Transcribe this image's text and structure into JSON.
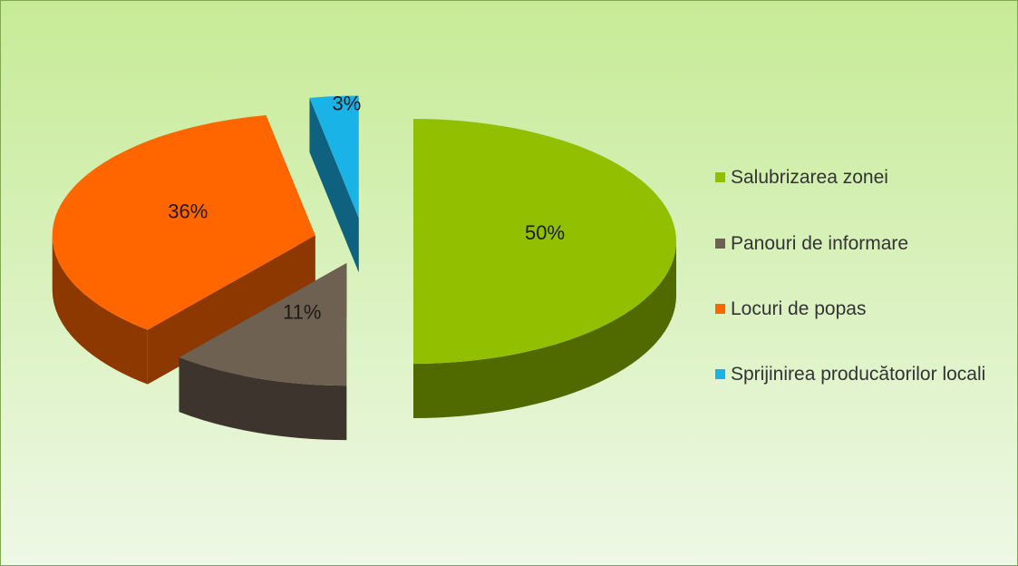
{
  "chart_data": {
    "type": "pie",
    "categories": [
      "Salubrizarea zonei",
      "Panouri de informare",
      "Locuri de popas",
      "Sprijinirea producătorilor locali"
    ],
    "values": [
      50,
      11,
      36,
      3
    ],
    "value_labels": [
      "50%",
      "11%",
      "36%",
      "3%"
    ],
    "colors": [
      "#92c000",
      "#6f6151",
      "#ff6600",
      "#1ab3e8"
    ],
    "legend": "right"
  }
}
